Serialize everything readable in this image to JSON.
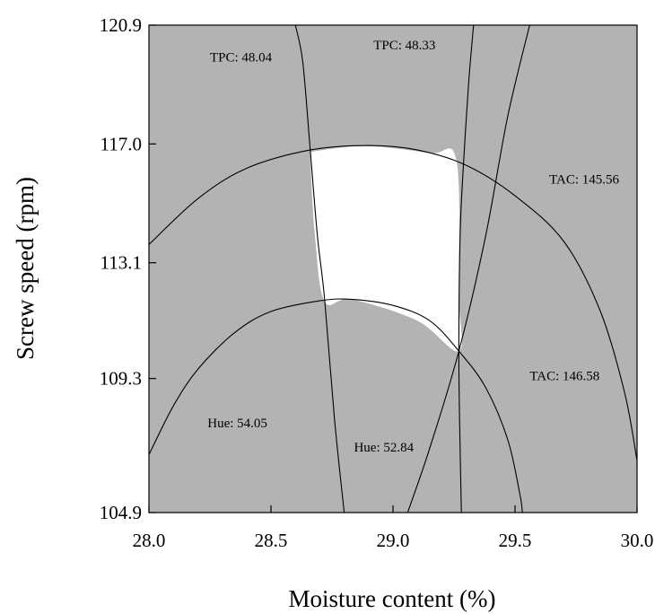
{
  "chart_data": {
    "type": "contour",
    "xlabel": "Moisture content (%)",
    "ylabel": "Screw speed (rpm)",
    "xlim": [
      28.0,
      30.0
    ],
    "ylim": [
      104.9,
      120.9
    ],
    "x_ticks": [
      "28.0",
      "28.5",
      "29.0",
      "29.5",
      "30.0"
    ],
    "y_ticks": [
      "104.9",
      "109.3",
      "113.1",
      "117.0",
      "120.9"
    ],
    "x_tick_values": [
      28.0,
      28.5,
      29.0,
      29.5,
      30.0
    ],
    "y_tick_values": [
      104.9,
      109.3,
      113.1,
      117.0,
      120.9
    ],
    "region_color_infeasible": "#b3b3b3",
    "region_color_feasible": "#ffffff",
    "feasible_region": {
      "vertices": [
        [
          28.66,
          116.74
        ],
        [
          28.88,
          116.93
        ],
        [
          29.15,
          116.7
        ],
        [
          29.26,
          116.45
        ],
        [
          29.27,
          112.0
        ],
        [
          29.27,
          110.2
        ],
        [
          29.1,
          111.2
        ],
        [
          28.83,
          111.9
        ],
        [
          28.72,
          111.83
        ],
        [
          28.68,
          114.0
        ]
      ]
    },
    "series": [
      {
        "name": "TPC: 48.04",
        "label_at": [
          28.25,
          119.7
        ],
        "points": [
          [
            28.6,
            120.9
          ],
          [
            28.63,
            119.7
          ],
          [
            28.66,
            116.9
          ],
          [
            28.69,
            114.0
          ],
          [
            28.72,
            111.9
          ],
          [
            28.76,
            108.0
          ],
          [
            28.8,
            104.9
          ]
        ]
      },
      {
        "name": "TPC: 48.33",
        "label_at": [
          28.92,
          120.1
        ],
        "points": [
          [
            29.33,
            120.9
          ],
          [
            29.31,
            119.0
          ],
          [
            29.29,
            116.5
          ],
          [
            29.275,
            114.0
          ],
          [
            29.27,
            110.1
          ],
          [
            29.275,
            107.0
          ],
          [
            29.28,
            104.9
          ]
        ]
      },
      {
        "name": "TAC: 145.56",
        "label_at": [
          29.64,
          115.7
        ],
        "points": [
          [
            28.0,
            113.7
          ],
          [
            28.2,
            115.2
          ],
          [
            28.4,
            116.2
          ],
          [
            28.66,
            116.8
          ],
          [
            28.9,
            116.95
          ],
          [
            29.1,
            116.8
          ],
          [
            29.3,
            116.3
          ],
          [
            29.5,
            115.3
          ],
          [
            29.7,
            113.8
          ],
          [
            29.85,
            111.5
          ],
          [
            29.95,
            108.8
          ],
          [
            30.0,
            106.6
          ]
        ]
      },
      {
        "name": "TAC: 146.58",
        "label_at": [
          29.56,
          109.25
        ],
        "points": [
          [
            29.06,
            104.9
          ],
          [
            29.15,
            107.0
          ],
          [
            29.27,
            110.2
          ],
          [
            29.38,
            114.0
          ],
          [
            29.47,
            117.9
          ],
          [
            29.56,
            120.9
          ]
        ]
      },
      {
        "name": "Hue: 54.05",
        "label_at": [
          28.24,
          107.7
        ],
        "points": [
          [
            28.0,
            106.8
          ],
          [
            28.1,
            108.4
          ],
          [
            28.2,
            109.6
          ],
          [
            28.35,
            110.8
          ],
          [
            28.5,
            111.5
          ],
          [
            28.7,
            111.85
          ],
          [
            28.83,
            111.9
          ],
          [
            29.0,
            111.7
          ],
          [
            29.15,
            111.2
          ],
          [
            29.27,
            110.2
          ],
          [
            29.38,
            109.0
          ],
          [
            29.47,
            107.3
          ],
          [
            29.52,
            105.5
          ],
          [
            29.53,
            104.9
          ]
        ]
      },
      {
        "name": "Hue: 52.84",
        "label_at": [
          28.84,
          106.9
        ],
        "points": []
      }
    ]
  }
}
